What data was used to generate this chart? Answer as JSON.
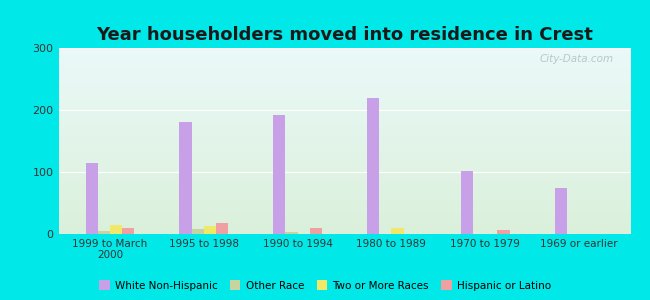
{
  "title": "Year householders moved into residence in Crest",
  "categories": [
    "1999 to March\n2000",
    "1995 to 1998",
    "1990 to 1994",
    "1980 to 1989",
    "1970 to 1979",
    "1969 or earlier"
  ],
  "series": {
    "White Non-Hispanic": [
      115,
      180,
      192,
      220,
      102,
      75
    ],
    "Other Race": [
      5,
      8,
      4,
      0,
      0,
      0
    ],
    "Two or More Races": [
      15,
      13,
      0,
      10,
      0,
      0
    ],
    "Hispanic or Latino": [
      10,
      17,
      10,
      0,
      7,
      0
    ]
  },
  "colors": {
    "White Non-Hispanic": "#c8a0e8",
    "Other Race": "#c8d4a0",
    "Two or More Races": "#f0e868",
    "Hispanic or Latino": "#f0a0a0"
  },
  "bar_width": 0.13,
  "ylim": [
    0,
    300
  ],
  "yticks": [
    0,
    100,
    200,
    300
  ],
  "background_color": "#00e8e8",
  "plot_bg_top": "#eaf8f8",
  "plot_bg_bottom": "#daf0da",
  "watermark": "City-Data.com",
  "title_fontsize": 13
}
